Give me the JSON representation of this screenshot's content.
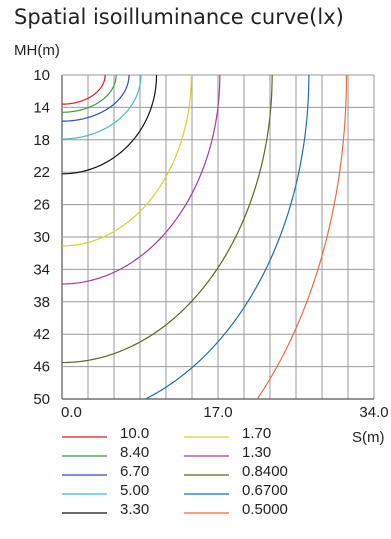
{
  "chart_data": {
    "type": "line",
    "title": "Spatial isoilluminance curve(lx)",
    "ylabel": "MH(m)",
    "xlabel": "S(m)",
    "xlim": [
      0,
      34
    ],
    "ylim": [
      10,
      50
    ],
    "x_ticks": [
      "0.0",
      "17.0",
      "34.0"
    ],
    "y_ticks": [
      "10",
      "14",
      "18",
      "22",
      "26",
      "30",
      "34",
      "38",
      "42",
      "46",
      "50"
    ],
    "grid": true,
    "series": [
      {
        "name": "10.0",
        "color": "#d62020",
        "radius_s": 4.7,
        "radius_mh": 3.6
      },
      {
        "name": "8.40",
        "color": "#3c9a3c",
        "radius_s": 5.9,
        "radius_mh": 4.6
      },
      {
        "name": "6.70",
        "color": "#2a4fb5",
        "radius_s": 7.3,
        "radius_mh": 5.7
      },
      {
        "name": "5.00",
        "color": "#48bcc9",
        "radius_s": 8.6,
        "radius_mh": 7.9
      },
      {
        "name": "3.30",
        "color": "#111111",
        "radius_s": 10.3,
        "radius_mh": 12.2
      },
      {
        "name": "1.70",
        "color": "#d4d430",
        "radius_s": 14.1,
        "radius_mh": 21.1
      },
      {
        "name": "1.30",
        "color": "#a63aa6",
        "radius_s": 17.2,
        "radius_mh": 25.8
      },
      {
        "name": "0.8400",
        "color": "#556b1f",
        "radius_s": 22.9,
        "radius_mh": 35.5
      },
      {
        "name": "0.6700",
        "color": "#1c6fb3",
        "radius_s": 26.9,
        "radius_mh": 42.5
      },
      {
        "name": "0.5000",
        "color": "#f06a44",
        "radius_s": 31.0,
        "radius_mh": 55.0
      }
    ]
  }
}
